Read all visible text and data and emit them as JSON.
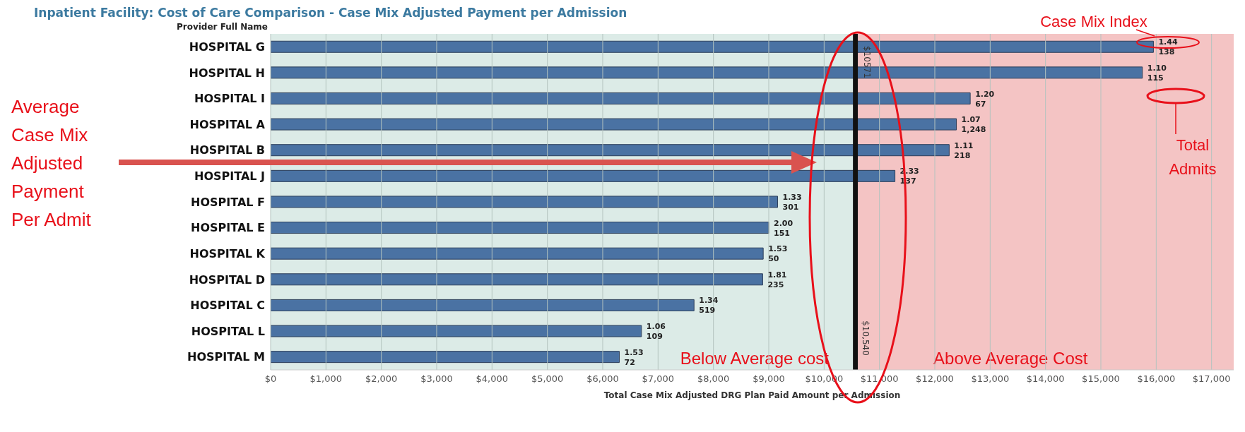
{
  "chart_data": {
    "type": "bar",
    "orientation": "horizontal",
    "title": "Inpatient Facility: Cost of Care Comparison - Case Mix Adjusted Payment per Admission",
    "ylabel": "Provider Full Name",
    "xlabel": "Total Case Mix Adjusted DRG Plan Paid Amount per Admission",
    "categories": [
      "HOSPITAL G",
      "HOSPITAL H",
      "HOSPITAL I",
      "HOSPITAL A",
      "HOSPITAL B",
      "HOSPITAL J",
      "HOSPITAL F",
      "HOSPITAL E",
      "HOSPITAL K",
      "HOSPITAL D",
      "HOSPITAL C",
      "HOSPITAL L",
      "HOSPITAL M"
    ],
    "values": [
      15950,
      15750,
      12640,
      12390,
      12260,
      11280,
      9160,
      9000,
      8900,
      8890,
      7650,
      6700,
      6300
    ],
    "color": "#4a72a3",
    "xlim": [
      0,
      17400
    ],
    "xticks": [
      {
        "value": 0,
        "label": "$0"
      },
      {
        "value": 1000,
        "label": "$1,000"
      },
      {
        "value": 2000,
        "label": "$2,000"
      },
      {
        "value": 3000,
        "label": "$3,000"
      },
      {
        "value": 4000,
        "label": "$4,000"
      },
      {
        "value": 5000,
        "label": "$5,000"
      },
      {
        "value": 6000,
        "label": "$6,000"
      },
      {
        "value": 7000,
        "label": "$7,000"
      },
      {
        "value": 8000,
        "label": "$8,000"
      },
      {
        "value": 9000,
        "label": "$9,000"
      },
      {
        "value": 10000,
        "label": "$10,000"
      },
      {
        "value": 11000,
        "label": "$11,000"
      },
      {
        "value": 12000,
        "label": "$12,000"
      },
      {
        "value": 13000,
        "label": "$13,000"
      },
      {
        "value": 14000,
        "label": "$14,000"
      },
      {
        "value": 15000,
        "label": "$15,000"
      },
      {
        "value": 16000,
        "label": "$16,000"
      },
      {
        "value": 17000,
        "label": "$17,000"
      }
    ],
    "grid": "x",
    "ref_lines": [
      {
        "axis": "x",
        "value": 10571,
        "label": "$10571",
        "color": "#111111"
      },
      {
        "axis": "x",
        "value": 10540,
        "label": "$10,540",
        "color": "#111111"
      }
    ],
    "bands": [
      {
        "axis": "x",
        "from": 0,
        "to": 10571,
        "label": "Below Average cost",
        "color": "#dcebe7"
      },
      {
        "axis": "x",
        "from": 10571,
        "to": 17400,
        "label": "Above Average Cost",
        "color": "#f4c4c4"
      }
    ],
    "annotations": [
      "Case Mix Index",
      "Total Admits",
      "Average Case Mix Adjusted Payment Per Admit",
      {
        "text": "1.44",
        "x": 15950,
        "y": "HOSPITAL G"
      },
      {
        "text": "138",
        "x": 15950,
        "y": "HOSPITAL G"
      },
      {
        "text": "1.10",
        "x": 15750,
        "y": "HOSPITAL H"
      },
      {
        "text": "115",
        "x": 15750,
        "y": "HOSPITAL H"
      },
      {
        "text": "1.20",
        "x": 12640,
        "y": "HOSPITAL I"
      },
      {
        "text": "67",
        "x": 12640,
        "y": "HOSPITAL I"
      },
      {
        "text": "1.07",
        "x": 12390,
        "y": "HOSPITAL A"
      },
      {
        "text": "1,248",
        "x": 12390,
        "y": "HOSPITAL A"
      },
      {
        "text": "1.11",
        "x": 12260,
        "y": "HOSPITAL B"
      },
      {
        "text": "218",
        "x": 12260,
        "y": "HOSPITAL B"
      },
      {
        "text": "2.33",
        "x": 11280,
        "y": "HOSPITAL J"
      },
      {
        "text": "137",
        "x": 11280,
        "y": "HOSPITAL J"
      },
      {
        "text": "1.33",
        "x": 9160,
        "y": "HOSPITAL F"
      },
      {
        "text": "301",
        "x": 9160,
        "y": "HOSPITAL F"
      },
      {
        "text": "2.00",
        "x": 9000,
        "y": "HOSPITAL E"
      },
      {
        "text": "151",
        "x": 9000,
        "y": "HOSPITAL E"
      },
      {
        "text": "1.53",
        "x": 8900,
        "y": "HOSPITAL K"
      },
      {
        "text": "50",
        "x": 8900,
        "y": "HOSPITAL K"
      },
      {
        "text": "1.81",
        "x": 8890,
        "y": "HOSPITAL D"
      },
      {
        "text": "235",
        "x": 8890,
        "y": "HOSPITAL D"
      },
      {
        "text": "1.34",
        "x": 7650,
        "y": "HOSPITAL C"
      },
      {
        "text": "519",
        "x": 7650,
        "y": "HOSPITAL C"
      },
      {
        "text": "1.06",
        "x": 6700,
        "y": "HOSPITAL L"
      },
      {
        "text": "109",
        "x": 6700,
        "y": "HOSPITAL L"
      },
      {
        "text": "1.53",
        "x": 6300,
        "y": "HOSPITAL M"
      },
      {
        "text": "72",
        "x": 6300,
        "y": "HOSPITAL M"
      }
    ]
  }
}
